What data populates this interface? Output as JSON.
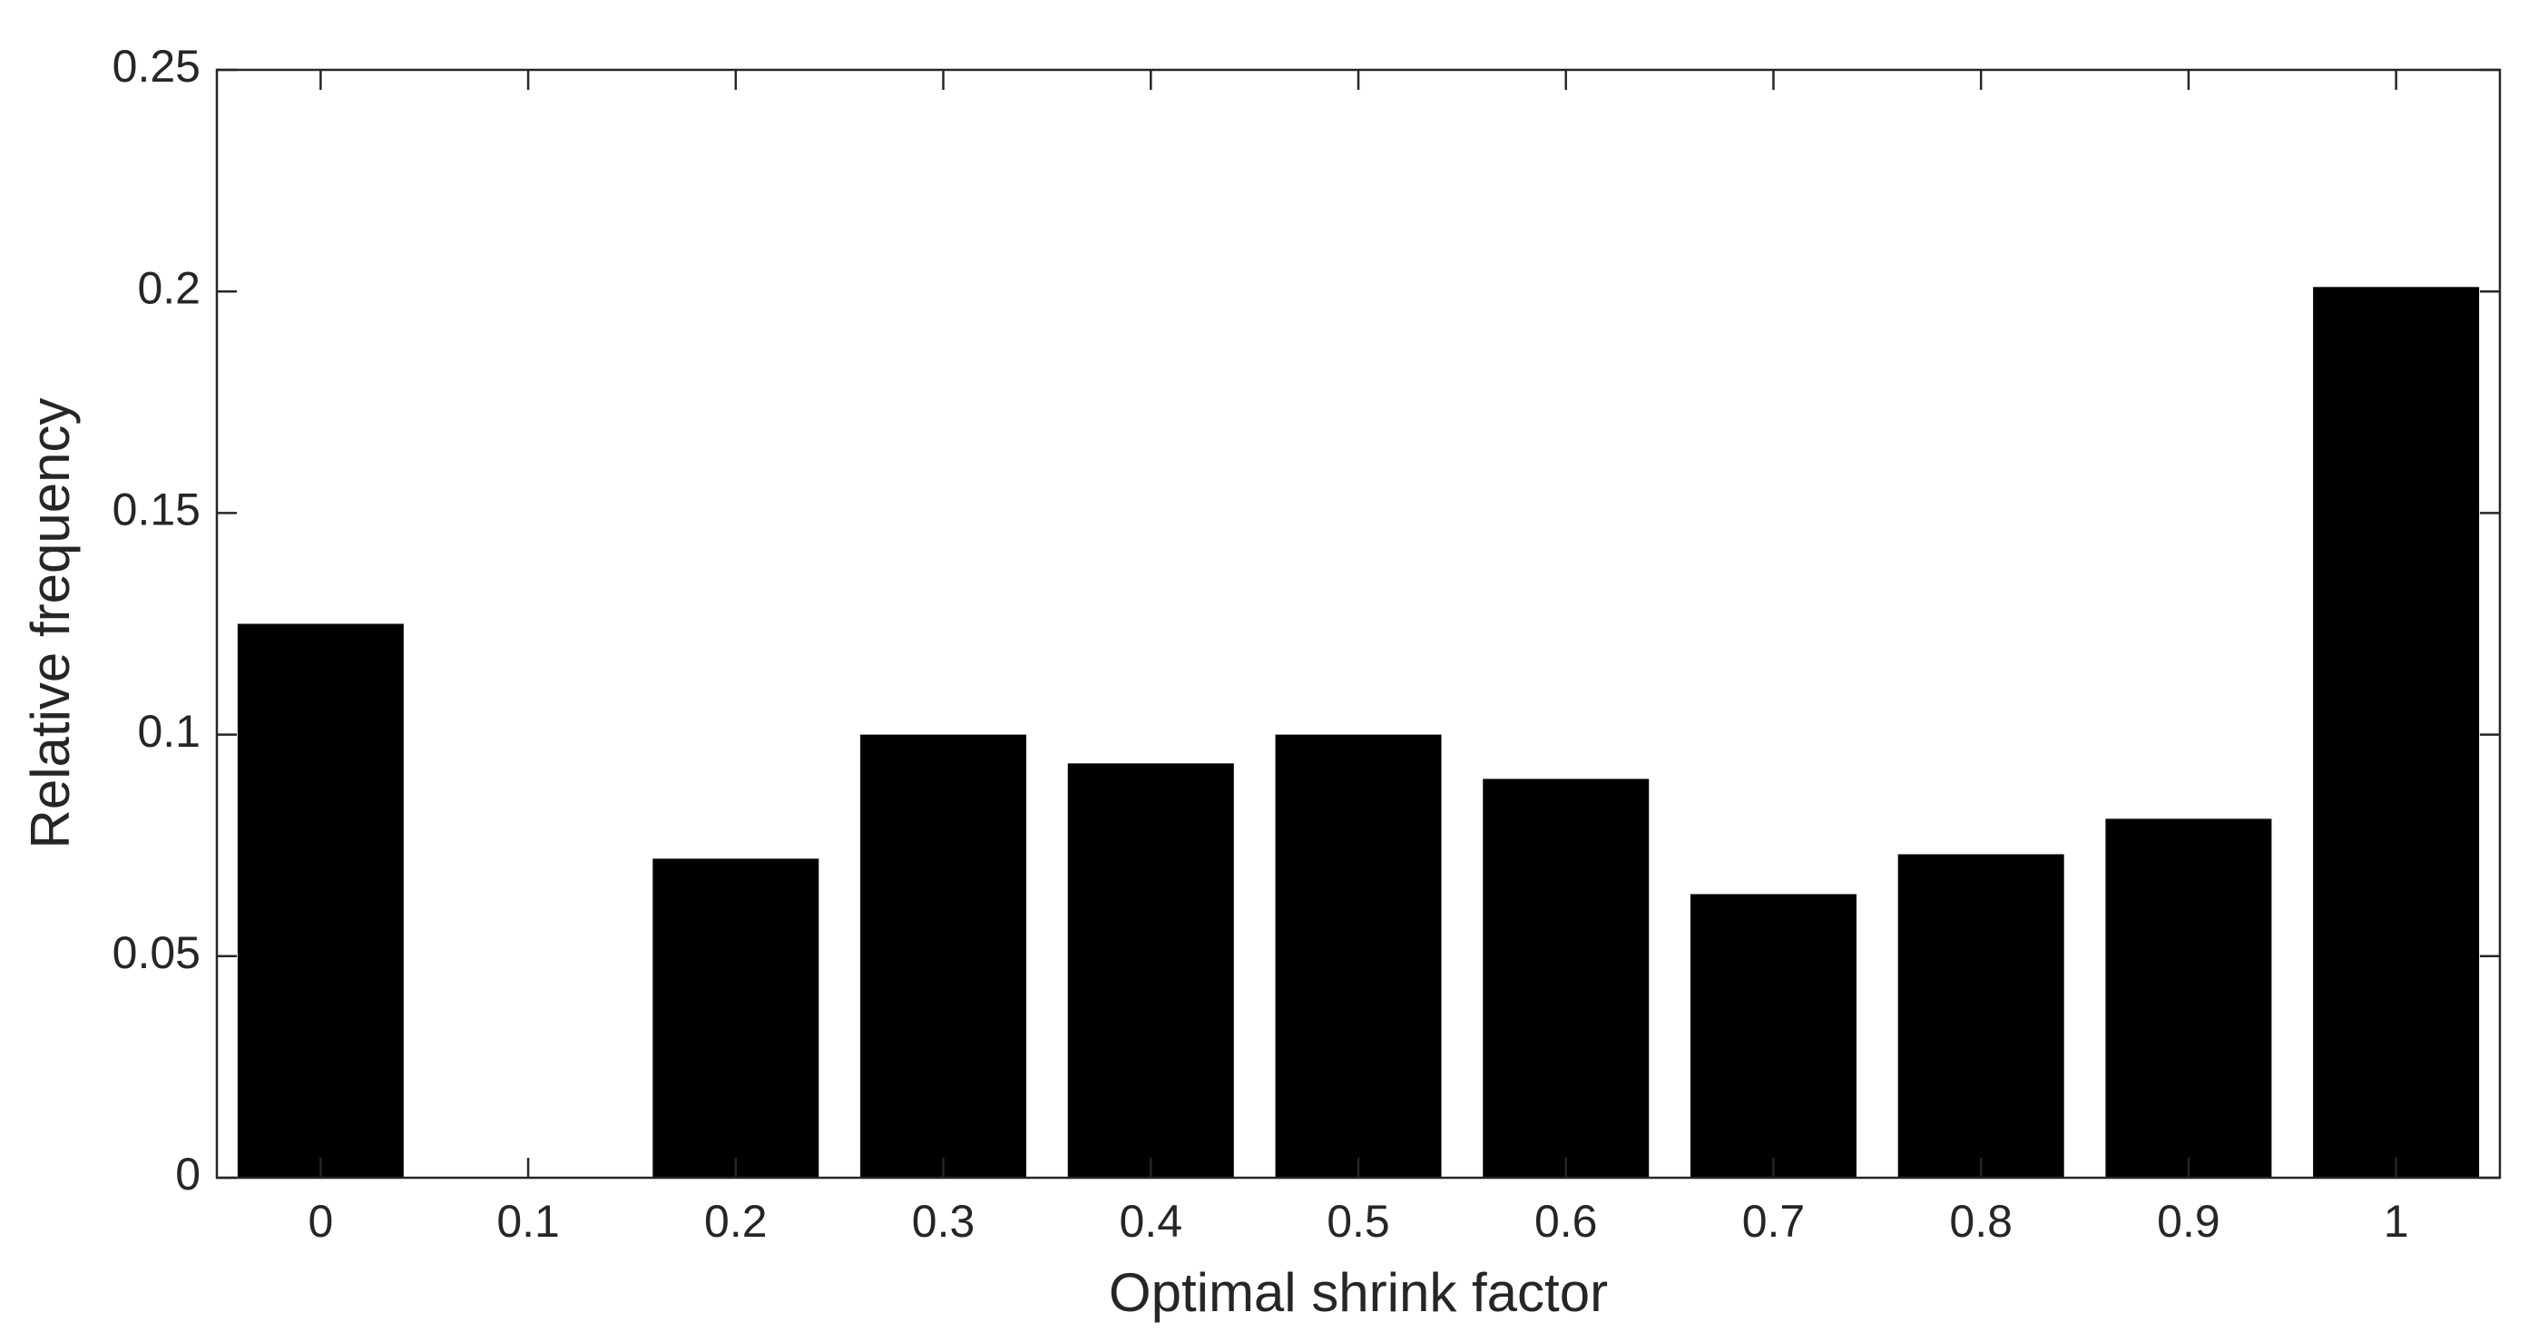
{
  "chart_data": {
    "type": "bar",
    "xlabel": "Optimal shrink factor",
    "ylabel": "Relative frequency",
    "x": [
      0,
      0.1,
      0.2,
      0.3,
      0.4,
      0.5,
      0.6,
      0.7,
      0.8,
      0.9,
      1
    ],
    "values": [
      0.125,
      0,
      0.072,
      0.1,
      0.0935,
      0.1,
      0.09,
      0.064,
      0.073,
      0.081,
      0.201
    ],
    "color": "#000000",
    "xlim": [
      -0.05,
      1.05
    ],
    "xticks": [
      0,
      0.1,
      0.2,
      0.3,
      0.4,
      0.5,
      0.6,
      0.7,
      0.8,
      0.9,
      1
    ],
    "ylim": [
      0,
      0.25
    ],
    "yticks": [
      0,
      0.05,
      0.1,
      0.15,
      0.2,
      0.25
    ],
    "grid": false
  }
}
